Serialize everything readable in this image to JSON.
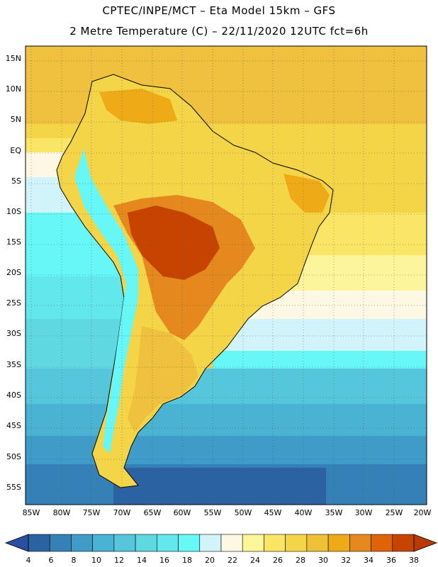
{
  "header": {
    "line1": "CPTEC/INPE/MCT –  Eta Model 15km – GFS",
    "line2": "2 Metre Temperature (C) – 22/11/2020 12UTC fct=6h"
  },
  "axes": {
    "lat_labels": [
      "15N",
      "10N",
      "5N",
      "EQ",
      "5S",
      "10S",
      "15S",
      "20S",
      "25S",
      "30S",
      "35S",
      "40S",
      "45S",
      "50S",
      "55S"
    ],
    "lon_labels": [
      "85W",
      "80W",
      "75W",
      "70W",
      "65W",
      "60W",
      "55W",
      "50W",
      "45W",
      "40W",
      "35W",
      "30W",
      "25W",
      "20W"
    ]
  },
  "colorbar": {
    "ticks": [
      "4",
      "6",
      "8",
      "10",
      "12",
      "14",
      "16",
      "18",
      "20",
      "22",
      "24",
      "26",
      "28",
      "30",
      "32",
      "34",
      "36",
      "38"
    ],
    "colors": [
      "#2b62a1",
      "#3580b6",
      "#3f9bc7",
      "#4ab2d2",
      "#55c6dc",
      "#5fd8e2",
      "#62e8ec",
      "#68f7f7",
      "#d0f4f9",
      "#fdf8e4",
      "#fdf59b",
      "#fbe565",
      "#f5d548",
      "#efc139",
      "#efab17",
      "#e5891e",
      "#df6408",
      "#c74400"
    ],
    "under_color": "#2b4f9e",
    "over_color": "#b93a05"
  }
}
